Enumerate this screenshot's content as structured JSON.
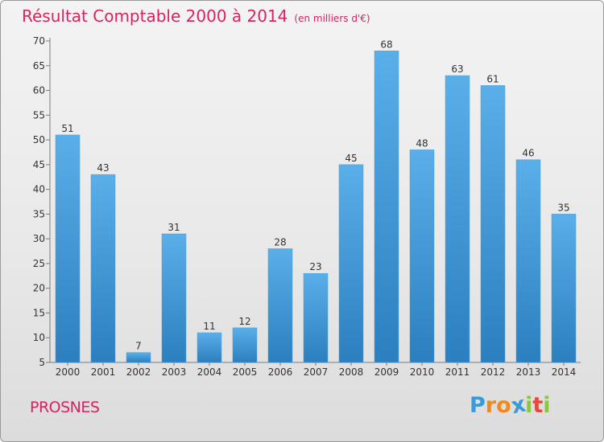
{
  "chart_data": {
    "type": "bar",
    "title": "Résultat Comptable 2000 à 2014",
    "subtitle": "(en milliers d'€)",
    "categories": [
      "2000",
      "2001",
      "2002",
      "2003",
      "2004",
      "2005",
      "2006",
      "2007",
      "2008",
      "2009",
      "2010",
      "2011",
      "2012",
      "2013",
      "2014"
    ],
    "values": [
      51,
      43,
      7,
      31,
      11,
      12,
      28,
      23,
      45,
      68,
      48,
      63,
      61,
      46,
      35
    ],
    "ylim": [
      5,
      70
    ],
    "yticks": [
      5,
      10,
      15,
      20,
      25,
      30,
      35,
      40,
      45,
      50,
      55,
      60,
      65,
      70
    ],
    "xlabel": "",
    "ylabel": "",
    "grid": false,
    "legend": "none"
  },
  "footer": {
    "commune": "PROSNES",
    "logo_letters": [
      "P",
      "r",
      "o",
      "x",
      "i",
      "t",
      "i"
    ]
  },
  "colors": {
    "title": "#d8235f",
    "bar_top": "#5aafe9",
    "bar_bottom": "#2b7fbf",
    "logo": [
      "#3a9ad9",
      "#f08a1c",
      "#f08a1c",
      "#3a9ad9",
      "#8cc63f",
      "#e8473b",
      "#8cc63f"
    ]
  }
}
